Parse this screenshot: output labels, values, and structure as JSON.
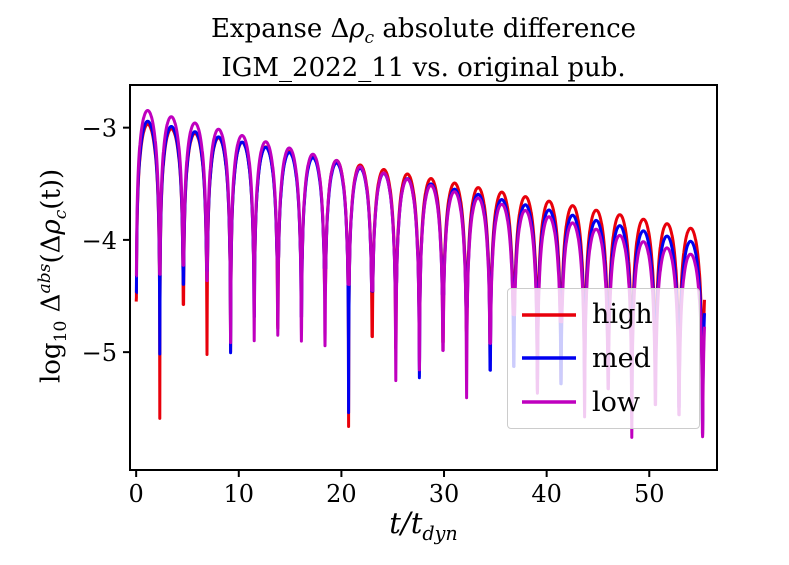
{
  "title": {
    "line1_pre": "Expanse Δ",
    "line1_rho": "ρ",
    "line1_sub": "c",
    "line1_post": " absolute difference",
    "line2": "IGM_2022_11 vs. original pub."
  },
  "axis_labels": {
    "y_log": "log",
    "y_logsub": "10",
    "y_delta": " Δ",
    "y_sup": "abs",
    "y_open": "(Δ",
    "y_rho": "ρ",
    "y_rhosub": "c",
    "y_tail": "(t))",
    "x_main": "t/t",
    "x_sub": "dyn"
  },
  "chart_data": {
    "type": "line",
    "title": "Expanse Δρ_c absolute difference IGM_2022_11 vs. original pub.",
    "xlabel": "t/t_dyn",
    "ylabel": "log10 Δ^abs(Δρ_c(t))",
    "axes": {
      "xlim": [
        -0.6,
        56.6
      ],
      "ylim": [
        -6.05,
        -2.62
      ],
      "xticks": [
        0,
        10,
        20,
        30,
        40,
        50
      ],
      "yticks": [
        -3,
        -4,
        -5
      ],
      "xtick_labels": [
        "0",
        "10",
        "20",
        "30",
        "40",
        "50"
      ],
      "ytick_labels": [
        "−3",
        "−4",
        "−5"
      ],
      "grid": false
    },
    "legend": {
      "position": "lower right",
      "labels": [
        "high",
        "med",
        "low"
      ]
    },
    "style": {
      "linewidth": 3,
      "spine_width": 2,
      "tick_len": 7
    },
    "oscillation": {
      "period": 2.3,
      "model": "y(t) = envelope(t) + log10|sin(pi*t/period)|, cusps clipped at envelope - dip_depth(j) at each zero crossing j"
    },
    "series": [
      {
        "name": "high",
        "color": "#e8000b",
        "env_start": -2.95,
        "env_end": -3.92,
        "t_end": 55.4,
        "dip_base": 0.9,
        "dip_amp": 1.0,
        "seed": 3.7,
        "deep_dips": {
          "0": 1.6,
          "1": 2.6,
          "3": 1.95,
          "9": 2.35
        }
      },
      {
        "name": "med",
        "color": "#0000f0",
        "env_start": -2.92,
        "env_end": -4.04,
        "t_end": 55.4,
        "dip_base": 0.9,
        "dip_amp": 1.0,
        "seed": 7.1,
        "deep_dips": {
          "0": 1.55,
          "1": 2.05,
          "4": 1.9,
          "9": 2.2
        }
      },
      {
        "name": "low",
        "color": "#bf00bf",
        "env_start": -2.82,
        "env_end": -4.16,
        "t_end": 55.4,
        "dip_base": 0.9,
        "dip_amp": 1.0,
        "seed": 11.9,
        "deep_dips": {
          "0": 1.5,
          "5": 1.8,
          "17": 1.6,
          "19": 1.7
        }
      }
    ],
    "envelope_readings": {
      "t": [
        0,
        10,
        20,
        30,
        40,
        50,
        55
      ],
      "high": [
        -2.95,
        -3.13,
        -3.3,
        -3.48,
        -3.65,
        -3.83,
        -3.92
      ],
      "med": [
        -2.92,
        -3.12,
        -3.32,
        -3.53,
        -3.73,
        -3.93,
        -4.04
      ],
      "low": [
        -2.82,
        -3.06,
        -3.31,
        -3.55,
        -3.79,
        -4.04,
        -4.16
      ]
    }
  }
}
